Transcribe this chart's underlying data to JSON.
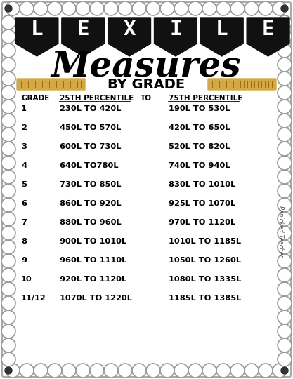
{
  "title_letters": [
    "L",
    "E",
    "X",
    "I",
    "L",
    "E"
  ],
  "subtitle": "Measures",
  "bygrade": "BY GRADE",
  "bg_color": "#ffffff",
  "banner_color": "#111111",
  "text_color": "#111111",
  "ruler_color": "#D4A843",
  "header_grade": "GRADE",
  "header_25th": "25TH PERCENTILE",
  "header_to": "TO",
  "header_75th": "75TH PERCENTILE",
  "grades": [
    "1",
    "2",
    "3",
    "4",
    "5",
    "6",
    "7",
    "8",
    "9",
    "10",
    "11/12"
  ],
  "p25": [
    "230L TO 420L",
    "450L TO 570L",
    "600L TO 730L",
    "640L TO780L",
    "730L TO 850L",
    "860L TO 920L",
    "880L TO 960L",
    "900L TO 1010L",
    "960L TO 1110L",
    "920L TO 1120L",
    "1070L TO 1220L"
  ],
  "p75": [
    "190L TO 530L",
    "420L TO 650L",
    "520L TO 820L",
    "740L TO 940L",
    "830L TO 1010L",
    "925L TO 1070L",
    "970L TO 1120L",
    "1010L TO 1185L",
    "1050L TO 1260L",
    "1080L TO 1335L",
    "1185L TO 1385L"
  ],
  "watermark": "Panicked Teacher",
  "border_dot_color": "#333333"
}
